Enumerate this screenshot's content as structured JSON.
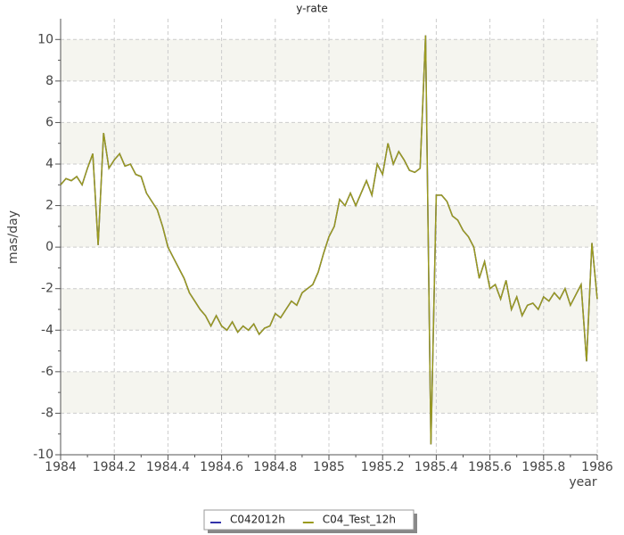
{
  "chart_data": {
    "type": "line",
    "title": "y-rate",
    "x_label": "year",
    "y_label": "mas/day",
    "x": [
      1984.0,
      1984.02,
      1984.04,
      1984.06,
      1984.08,
      1984.1,
      1984.12,
      1984.14,
      1984.16,
      1984.18,
      1984.2,
      1984.22,
      1984.24,
      1984.26,
      1984.28,
      1984.3,
      1984.32,
      1984.34,
      1984.36,
      1984.38,
      1984.4,
      1984.42,
      1984.44,
      1984.46,
      1984.48,
      1984.5,
      1984.52,
      1984.54,
      1984.56,
      1984.58,
      1984.6,
      1984.62,
      1984.64,
      1984.66,
      1984.68,
      1984.7,
      1984.72,
      1984.74,
      1984.76,
      1984.78,
      1984.8,
      1984.82,
      1984.84,
      1984.86,
      1984.88,
      1984.9,
      1984.92,
      1984.94,
      1984.96,
      1984.98,
      1985.0,
      1985.02,
      1985.04,
      1985.06,
      1985.08,
      1985.1,
      1985.12,
      1985.14,
      1985.16,
      1985.18,
      1985.2,
      1985.22,
      1985.24,
      1985.26,
      1985.28,
      1985.3,
      1985.32,
      1985.34,
      1985.36,
      1985.38,
      1985.4,
      1985.42,
      1985.44,
      1985.46,
      1985.48,
      1985.5,
      1985.52,
      1985.54,
      1985.56,
      1985.58,
      1985.6,
      1985.62,
      1985.64,
      1985.66,
      1985.68,
      1985.7,
      1985.72,
      1985.74,
      1985.76,
      1985.78,
      1985.8,
      1985.82,
      1985.84,
      1985.86,
      1985.88,
      1985.9,
      1985.92,
      1985.94,
      1985.96,
      1985.98,
      1986.0
    ],
    "series": [
      {
        "name": "C042012h",
        "color": "#3333aa",
        "values": [
          3.0,
          3.3,
          3.2,
          3.4,
          3.0,
          3.8,
          4.5,
          0.1,
          5.5,
          3.8,
          4.2,
          4.5,
          3.9,
          4.0,
          3.5,
          3.4,
          2.6,
          2.2,
          1.8,
          1.0,
          0.0,
          -0.5,
          -1.0,
          -1.5,
          -2.2,
          -2.6,
          -3.0,
          -3.3,
          -3.8,
          -3.3,
          -3.8,
          -4.0,
          -3.6,
          -4.1,
          -3.8,
          -4.0,
          -3.7,
          -4.2,
          -3.9,
          -3.8,
          -3.2,
          -3.4,
          -3.0,
          -2.6,
          -2.8,
          -2.2,
          -2.0,
          -1.8,
          -1.2,
          -0.3,
          0.5,
          1.0,
          2.3,
          2.0,
          2.6,
          2.0,
          2.6,
          3.2,
          2.5,
          4.0,
          3.5,
          5.0,
          4.0,
          4.6,
          4.2,
          3.7,
          3.6,
          3.8,
          10.2,
          -9.5,
          2.5,
          2.5,
          2.2,
          1.5,
          1.3,
          0.8,
          0.5,
          0.0,
          -1.5,
          -0.7,
          -2.0,
          -1.8,
          -2.5,
          -1.6,
          -3.0,
          -2.4,
          -3.3,
          -2.8,
          -2.7,
          -3.0,
          -2.4,
          -2.6,
          -2.2,
          -2.5,
          -2.0,
          -2.8,
          -2.3,
          -1.8,
          -5.5,
          0.2,
          -2.5
        ]
      },
      {
        "name": "C04_Test_12h",
        "color": "#9a9a1e",
        "values": [
          3.0,
          3.3,
          3.2,
          3.4,
          3.0,
          3.8,
          4.5,
          0.1,
          5.5,
          3.8,
          4.2,
          4.5,
          3.9,
          4.0,
          3.5,
          3.4,
          2.6,
          2.2,
          1.8,
          1.0,
          0.0,
          -0.5,
          -1.0,
          -1.5,
          -2.2,
          -2.6,
          -3.0,
          -3.3,
          -3.8,
          -3.3,
          -3.8,
          -4.0,
          -3.6,
          -4.1,
          -3.8,
          -4.0,
          -3.7,
          -4.2,
          -3.9,
          -3.8,
          -3.2,
          -3.4,
          -3.0,
          -2.6,
          -2.8,
          -2.2,
          -2.0,
          -1.8,
          -1.2,
          -0.3,
          0.5,
          1.0,
          2.3,
          2.0,
          2.6,
          2.0,
          2.6,
          3.2,
          2.5,
          4.0,
          3.5,
          5.0,
          4.0,
          4.6,
          4.2,
          3.7,
          3.6,
          3.8,
          10.2,
          -9.5,
          2.5,
          2.5,
          2.2,
          1.5,
          1.3,
          0.8,
          0.5,
          0.0,
          -1.5,
          -0.7,
          -2.0,
          -1.8,
          -2.5,
          -1.6,
          -3.0,
          -2.4,
          -3.3,
          -2.8,
          -2.7,
          -3.0,
          -2.4,
          -2.6,
          -2.2,
          -2.5,
          -2.0,
          -2.8,
          -2.3,
          -1.8,
          -5.5,
          0.2,
          -2.5
        ]
      }
    ],
    "xlim": [
      1984,
      1986
    ],
    "xticks": [
      1984,
      1984.2,
      1984.4,
      1984.6,
      1984.8,
      1985,
      1985.2,
      1985.4,
      1985.6,
      1985.8,
      1986
    ],
    "ylim": [
      -10,
      11
    ],
    "yticks": [
      -10,
      -8,
      -6,
      -4,
      -2,
      0,
      2,
      4,
      6,
      8,
      10
    ],
    "grid": true,
    "band_shading": true,
    "legend": "bottom"
  }
}
